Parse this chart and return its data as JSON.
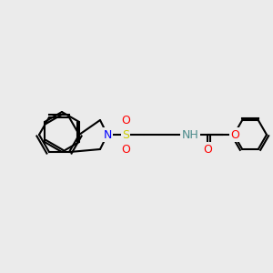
{
  "background_color": "#ebebeb",
  "bond_color": "#000000",
  "bond_width": 1.5,
  "atom_colors": {
    "N": "#0000ff",
    "S": "#cccc00",
    "O": "#ff0000",
    "H": "#4a8a8a",
    "C": "#000000"
  },
  "figsize": [
    3.0,
    3.0
  ],
  "dpi": 100
}
